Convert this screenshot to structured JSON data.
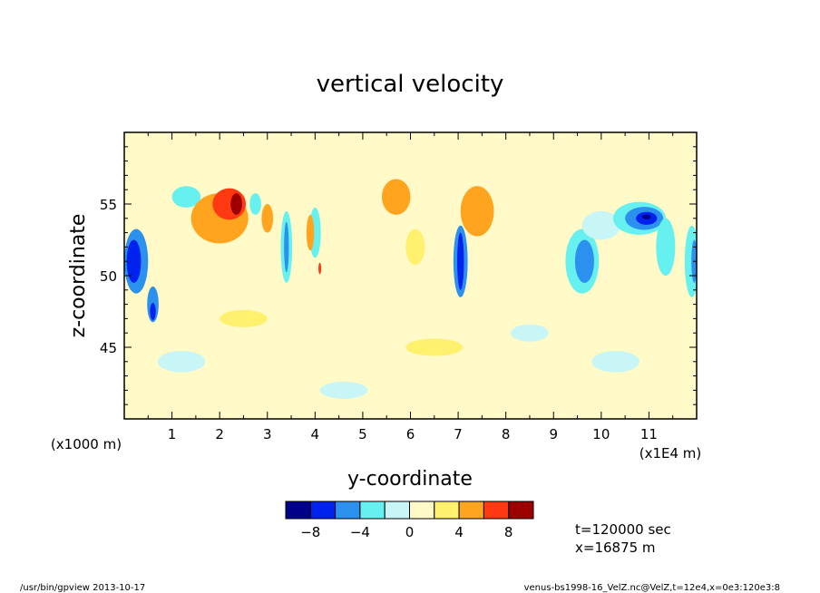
{
  "chart_data": {
    "type": "heatmap",
    "title": "vertical velocity",
    "xlabel": "y-coordinate",
    "ylabel": "z-coordinate",
    "x_unit_left": "(x1000 m)",
    "x_unit_right": "(x1E4 m)",
    "x_ticks": [
      "1",
      "2",
      "3",
      "4",
      "5",
      "6",
      "7",
      "8",
      "9",
      "10",
      "11"
    ],
    "x_tick_values": [
      1,
      2,
      3,
      4,
      5,
      6,
      7,
      8,
      9,
      10,
      11
    ],
    "xlim": [
      0,
      12
    ],
    "y_ticks": [
      "45",
      "50",
      "55"
    ],
    "y_tick_values": [
      45,
      50,
      55
    ],
    "ylim": [
      40,
      60
    ],
    "background_level": 0,
    "features": [
      {
        "y": 0.25,
        "z": 51,
        "w": 0.25,
        "h": 4.5,
        "level": -3
      },
      {
        "y": 0.2,
        "z": 51,
        "w": 0.15,
        "h": 3.0,
        "level": -4
      },
      {
        "y": 0.6,
        "z": 48,
        "w": 0.12,
        "h": 2.5,
        "level": -3
      },
      {
        "y": 0.6,
        "z": 47.5,
        "w": 0.06,
        "h": 1.2,
        "level": -4
      },
      {
        "y": 1.3,
        "z": 55.5,
        "w": 0.3,
        "h": 1.5,
        "level": -2
      },
      {
        "y": 2.0,
        "z": 54,
        "w": 0.6,
        "h": 3.5,
        "level": 2
      },
      {
        "y": 2.2,
        "z": 55,
        "w": 0.35,
        "h": 2.2,
        "level": 3
      },
      {
        "y": 2.35,
        "z": 55,
        "w": 0.12,
        "h": 1.5,
        "level": 4
      },
      {
        "y": 2.75,
        "z": 55,
        "w": 0.12,
        "h": 1.5,
        "level": -2
      },
      {
        "y": 3.0,
        "z": 54,
        "w": 0.12,
        "h": 2.0,
        "level": 2
      },
      {
        "y": 3.4,
        "z": 52,
        "w": 0.12,
        "h": 5.0,
        "level": -2
      },
      {
        "y": 3.4,
        "z": 52,
        "w": 0.05,
        "h": 3.5,
        "level": -3
      },
      {
        "y": 4.0,
        "z": 53,
        "w": 0.12,
        "h": 3.5,
        "level": -2
      },
      {
        "y": 3.9,
        "z": 53,
        "w": 0.08,
        "h": 2.5,
        "level": 2
      },
      {
        "y": 4.1,
        "z": 50.5,
        "w": 0.03,
        "h": 0.8,
        "level": 3
      },
      {
        "y": 5.7,
        "z": 55.5,
        "w": 0.3,
        "h": 2.5,
        "level": 2
      },
      {
        "y": 6.1,
        "z": 52,
        "w": 0.2,
        "h": 2.5,
        "level": 1
      },
      {
        "y": 7.05,
        "z": 51,
        "w": 0.15,
        "h": 5.0,
        "level": -3
      },
      {
        "y": 7.05,
        "z": 51,
        "w": 0.07,
        "h": 4.0,
        "level": -4
      },
      {
        "y": 7.4,
        "z": 54.5,
        "w": 0.35,
        "h": 3.5,
        "level": 2
      },
      {
        "y": 9.6,
        "z": 51,
        "w": 0.35,
        "h": 4.5,
        "level": -2
      },
      {
        "y": 9.65,
        "z": 51,
        "w": 0.2,
        "h": 3.0,
        "level": -3
      },
      {
        "y": 10.0,
        "z": 53.5,
        "w": 0.4,
        "h": 2.0,
        "level": -1
      },
      {
        "y": 10.8,
        "z": 54,
        "w": 0.55,
        "h": 2.3,
        "level": -2
      },
      {
        "y": 10.9,
        "z": 54,
        "w": 0.4,
        "h": 1.6,
        "level": -3
      },
      {
        "y": 10.95,
        "z": 54,
        "w": 0.22,
        "h": 0.9,
        "level": -4
      },
      {
        "y": 10.95,
        "z": 54.1,
        "w": 0.09,
        "h": 0.35,
        "level": -5
      },
      {
        "y": 11.35,
        "z": 52,
        "w": 0.2,
        "h": 4.0,
        "level": -2
      },
      {
        "y": 11.9,
        "z": 51,
        "w": 0.15,
        "h": 5.0,
        "level": -2
      },
      {
        "y": 11.95,
        "z": 51,
        "w": 0.06,
        "h": 3.0,
        "level": -3
      },
      {
        "y": 1.2,
        "z": 44,
        "w": 0.5,
        "h": 1.5,
        "level": -1
      },
      {
        "y": 4.6,
        "z": 42,
        "w": 0.5,
        "h": 1.2,
        "level": -1
      },
      {
        "y": 8.5,
        "z": 46,
        "w": 0.4,
        "h": 1.2,
        "level": -1
      },
      {
        "y": 10.3,
        "z": 44,
        "w": 0.5,
        "h": 1.5,
        "level": -1
      },
      {
        "y": 2.5,
        "z": 47,
        "w": 0.5,
        "h": 1.2,
        "level": 1
      },
      {
        "y": 6.5,
        "z": 45,
        "w": 0.6,
        "h": 1.2,
        "level": 1
      }
    ],
    "colorbar": {
      "colors": [
        "#00008b",
        "#0022ee",
        "#2b90ee",
        "#66f0f0",
        "#c8f5f5",
        "#fffac8",
        "#fff06e",
        "#ffa41f",
        "#ff3a12",
        "#9c0000"
      ],
      "levels": [
        -10,
        -8,
        -6,
        -4,
        -2,
        0,
        2,
        4,
        6,
        8,
        10
      ],
      "labels": [
        "−8",
        "−4",
        "0",
        "4",
        "8"
      ],
      "label_values": [
        -8,
        -4,
        0,
        4,
        8
      ]
    }
  },
  "annotations": {
    "time": "t=120000 sec",
    "position": "x=16875 m"
  },
  "footer": {
    "left": "/usr/bin/gpview   2013-10-17",
    "right": "venus-bs1998-16_VelZ.nc@VelZ,t=12e4,x=0e3:120e3:8"
  }
}
